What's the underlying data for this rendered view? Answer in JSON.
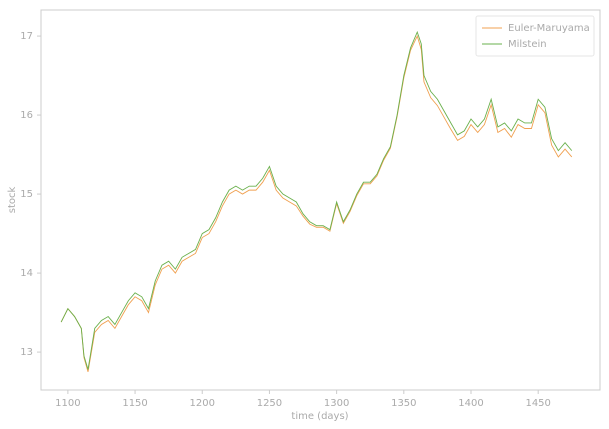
{
  "chart_data": {
    "type": "line",
    "xlabel": "time (days)",
    "ylabel": "stock",
    "x": [
      1095,
      1100,
      1105,
      1110,
      1112,
      1115,
      1120,
      1125,
      1130,
      1135,
      1140,
      1145,
      1150,
      1155,
      1160,
      1165,
      1170,
      1175,
      1180,
      1185,
      1190,
      1195,
      1200,
      1205,
      1210,
      1215,
      1220,
      1225,
      1230,
      1235,
      1240,
      1245,
      1250,
      1255,
      1260,
      1265,
      1270,
      1275,
      1280,
      1285,
      1290,
      1295,
      1300,
      1305,
      1310,
      1315,
      1320,
      1325,
      1330,
      1335,
      1340,
      1345,
      1350,
      1355,
      1360,
      1363,
      1365,
      1370,
      1375,
      1380,
      1385,
      1390,
      1395,
      1400,
      1405,
      1410,
      1415,
      1420,
      1425,
      1430,
      1435,
      1440,
      1445,
      1450,
      1455,
      1460,
      1465,
      1470,
      1475
    ],
    "series": [
      {
        "name": "Euler-Maruyama",
        "color": "#f0a050",
        "values": [
          13.38,
          13.55,
          13.45,
          13.3,
          12.93,
          12.75,
          13.25,
          13.35,
          13.4,
          13.3,
          13.45,
          13.6,
          13.7,
          13.65,
          13.5,
          13.85,
          14.05,
          14.1,
          14.0,
          14.15,
          14.2,
          14.25,
          14.45,
          14.5,
          14.65,
          14.85,
          15.0,
          15.05,
          15.0,
          15.05,
          15.05,
          15.15,
          15.3,
          15.05,
          14.95,
          14.9,
          14.85,
          14.72,
          14.62,
          14.58,
          14.58,
          14.53,
          14.88,
          14.63,
          14.78,
          14.98,
          15.13,
          15.13,
          15.23,
          15.43,
          15.58,
          15.98,
          16.47,
          16.82,
          17.0,
          16.83,
          16.42,
          16.22,
          16.12,
          15.97,
          15.82,
          15.68,
          15.73,
          15.88,
          15.78,
          15.88,
          16.13,
          15.78,
          15.83,
          15.72,
          15.88,
          15.83,
          15.83,
          16.13,
          16.03,
          15.62,
          15.47,
          15.57,
          15.47
        ]
      },
      {
        "name": "Milstein",
        "color": "#6ab04c",
        "values": [
          13.38,
          13.55,
          13.45,
          13.3,
          12.95,
          12.78,
          13.3,
          13.4,
          13.45,
          13.35,
          13.5,
          13.65,
          13.75,
          13.7,
          13.55,
          13.9,
          14.1,
          14.15,
          14.05,
          14.2,
          14.25,
          14.3,
          14.5,
          14.55,
          14.7,
          14.9,
          15.05,
          15.1,
          15.05,
          15.1,
          15.1,
          15.2,
          15.35,
          15.1,
          15.0,
          14.95,
          14.9,
          14.75,
          14.65,
          14.6,
          14.6,
          14.55,
          14.9,
          14.65,
          14.8,
          15.0,
          15.15,
          15.15,
          15.25,
          15.45,
          15.6,
          16.0,
          16.5,
          16.85,
          17.05,
          16.9,
          16.5,
          16.3,
          16.2,
          16.05,
          15.9,
          15.75,
          15.8,
          15.95,
          15.85,
          15.95,
          16.2,
          15.85,
          15.9,
          15.8,
          15.95,
          15.9,
          15.9,
          16.2,
          16.1,
          15.7,
          15.55,
          15.65,
          15.55
        ]
      }
    ],
    "xlim": [
      1080,
      1496
    ],
    "ylim": [
      12.52,
      17.33
    ],
    "xticks": [
      1100,
      1150,
      1200,
      1250,
      1300,
      1350,
      1400,
      1450
    ],
    "yticks": [
      13,
      14,
      15,
      16,
      17
    ],
    "legend": "upper right",
    "grid": false
  }
}
